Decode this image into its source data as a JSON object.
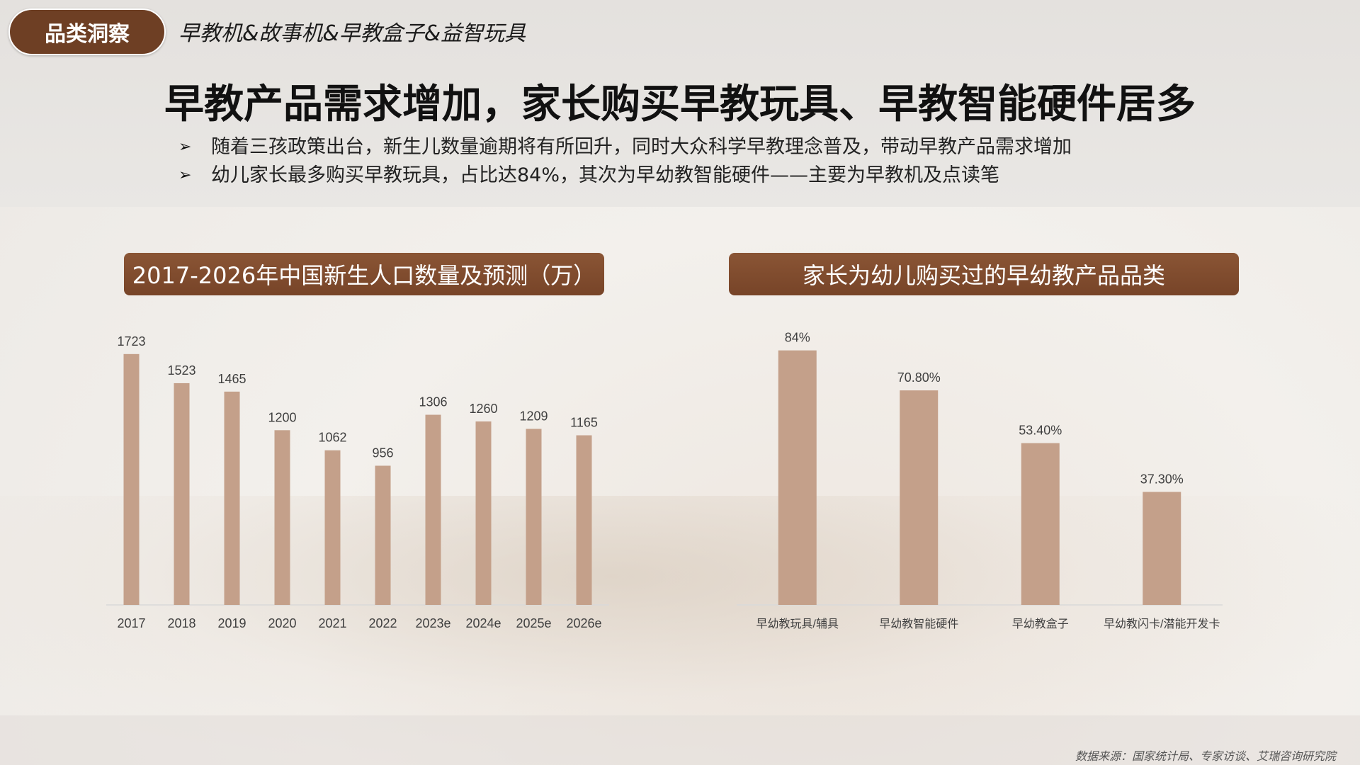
{
  "header": {
    "category_label": "品类洞察",
    "category_subtitle": "早教机&故事机&早教盒子&益智玩具",
    "title": "早教产品需求增加，家长购买早教玩具、早教智能硬件居多",
    "bullets": [
      "随着三孩政策出台，新生儿数量逾期将有所回升，同时大众科学早教理念普及，带动早教产品需求增加",
      "幼儿家长最多购买早教玩具，占比达84%，其次为早幼教智能硬件——主要为早教机及点读笔"
    ]
  },
  "colors": {
    "bar": "#c4a08a",
    "title_band": "#7d4a2c",
    "pill": "#6e3f24"
  },
  "chart_data": [
    {
      "type": "bar",
      "title": "2017-2026年中国新生人口数量及预测（万）",
      "categories": [
        "2017",
        "2018",
        "2019",
        "2020",
        "2021",
        "2022",
        "2023e",
        "2024e",
        "2025e",
        "2026e"
      ],
      "values": [
        1723,
        1523,
        1465,
        1200,
        1062,
        956,
        1306,
        1260,
        1209,
        1165
      ],
      "value_labels": [
        "1723",
        "1523",
        "1465",
        "1200",
        "1062",
        "956",
        "1306",
        "1260",
        "1209",
        "1165"
      ],
      "ylim": [
        0,
        1800
      ],
      "grid": false
    },
    {
      "type": "bar",
      "title": "家长为幼儿购买过的早幼教产品品类",
      "categories": [
        "早幼教玩具/辅具",
        "早幼教智能硬件",
        "早幼教盒子",
        "早幼教闪卡/潜能开发卡"
      ],
      "values": [
        84,
        70.8,
        53.4,
        37.3
      ],
      "value_labels": [
        "84%",
        "70.80%",
        "53.40%",
        "37.30%"
      ],
      "ylim": [
        0,
        90
      ],
      "grid": false
    }
  ],
  "footer": {
    "source": "数据来源：国家统计局、专家访谈、艾瑞咨询研究院"
  }
}
